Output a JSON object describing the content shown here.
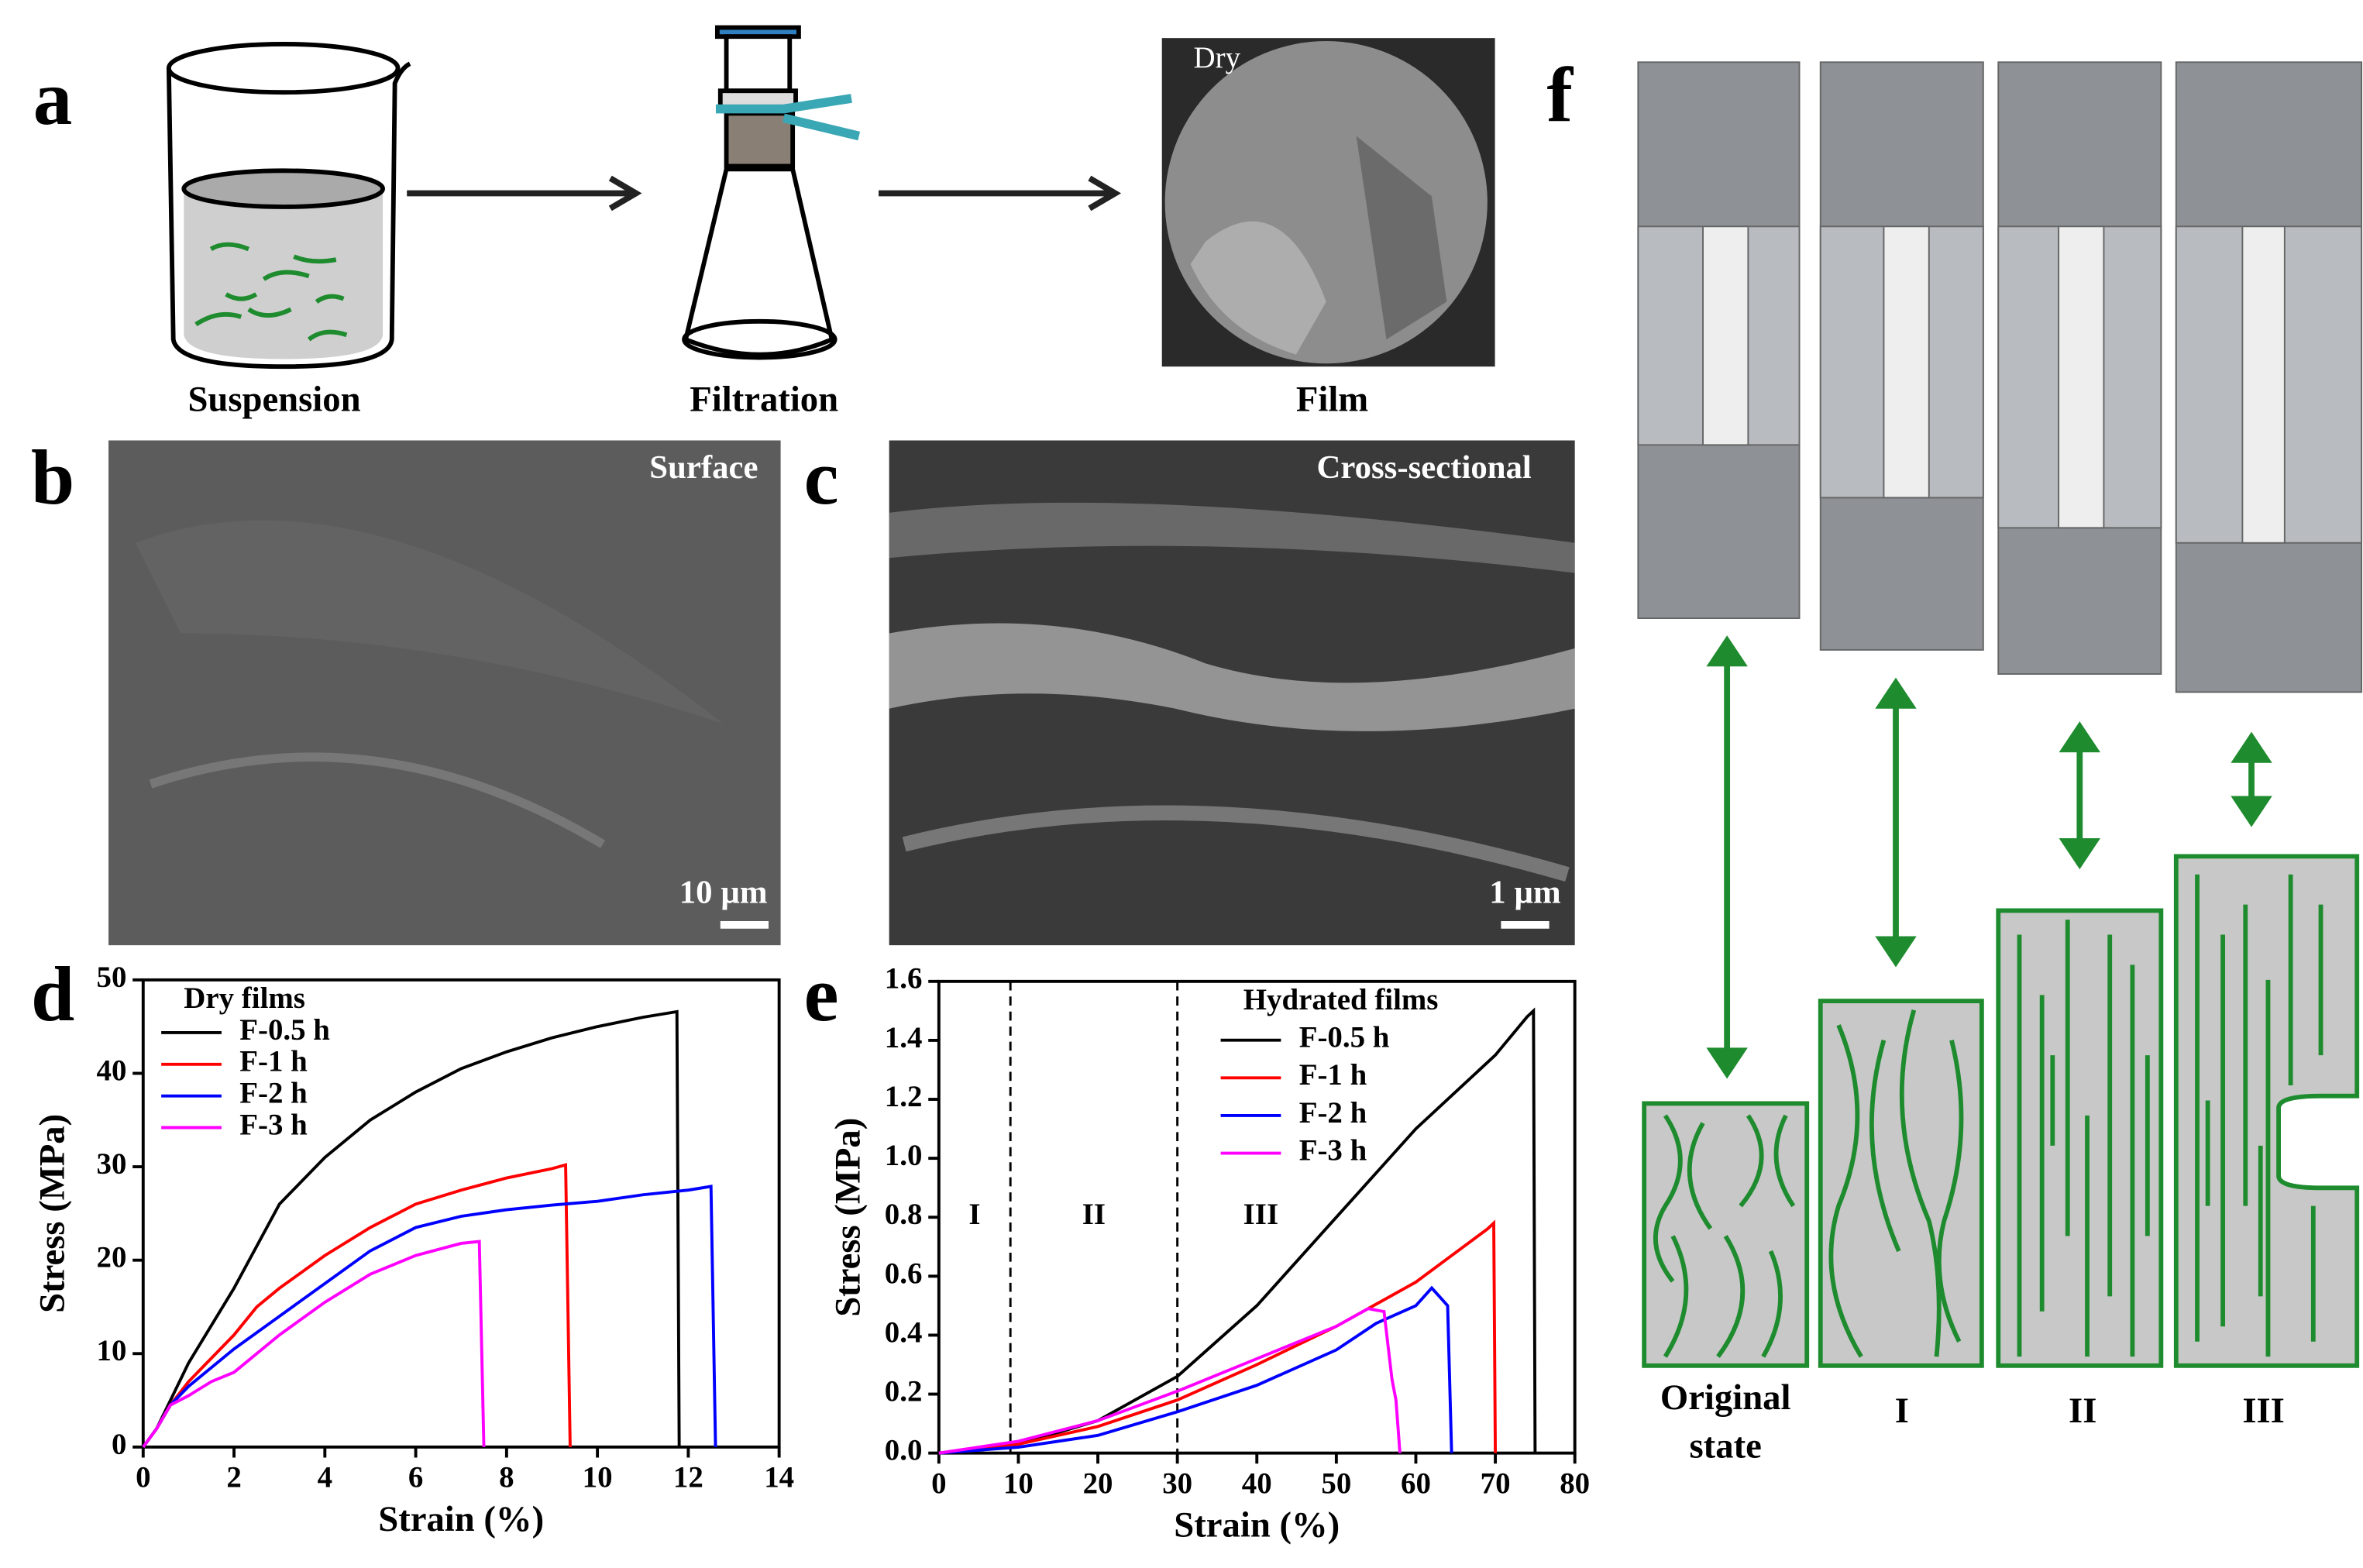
{
  "panel_labels": [
    "a",
    "b",
    "c",
    "d",
    "e",
    "f"
  ],
  "schematic": {
    "steps": [
      "Suspension",
      "Filtration",
      "Film"
    ],
    "film_label": "Dry"
  },
  "micrographs": [
    {
      "title": "Surface",
      "scale_bar": "10 µm"
    },
    {
      "title": "Cross-sectional",
      "scale_bar": "1 µm"
    }
  ],
  "stretching": {
    "states": [
      "Original state",
      "I",
      "II",
      "III"
    ]
  },
  "chart_data": [
    {
      "type": "line",
      "x_label": "Strain (%)",
      "y_label": "Stress (MPa)",
      "legend_title": "Dry films",
      "legend": "upper left",
      "xlim": [
        0,
        14
      ],
      "ylim": [
        0,
        50
      ],
      "xticks": [
        0,
        2,
        4,
        6,
        8,
        10,
        12,
        14
      ],
      "yticks": [
        0,
        10,
        20,
        30,
        40,
        50
      ],
      "series": [
        {
          "name": "F-0.5 h",
          "color": "#000000",
          "x": [
            0,
            0.3,
            0.6,
            1,
            2,
            3,
            4,
            5,
            6,
            7,
            8,
            9,
            10,
            11,
            11.75,
            11.8
          ],
          "values": [
            0,
            2,
            5,
            9,
            17,
            26,
            31,
            35,
            38,
            40.5,
            42.3,
            43.8,
            45,
            46,
            46.6,
            0
          ]
        },
        {
          "name": "F-1 h",
          "color": "#ff0000",
          "x": [
            0,
            0.3,
            0.6,
            1,
            2,
            2.5,
            3,
            4,
            5,
            6,
            7,
            8,
            9,
            9.3,
            9.4
          ],
          "values": [
            0,
            2,
            4.5,
            7,
            12,
            15,
            17,
            20.5,
            23.5,
            26,
            27.5,
            28.8,
            29.8,
            30.2,
            0
          ]
        },
        {
          "name": "F-2 h",
          "color": "#0000ff",
          "x": [
            0,
            0.3,
            0.6,
            1,
            2,
            3,
            4,
            5,
            6,
            7,
            8,
            9,
            10,
            11,
            12,
            12.5,
            12.6
          ],
          "values": [
            0,
            2,
            4.5,
            6.5,
            10.5,
            14,
            17.5,
            21,
            23.5,
            24.7,
            25.4,
            25.9,
            26.3,
            27,
            27.5,
            27.9,
            0
          ]
        },
        {
          "name": "F-3 h",
          "color": "#ff00ff",
          "x": [
            0,
            0.3,
            0.6,
            1,
            1.5,
            2,
            3,
            4,
            5,
            6,
            7,
            7.4,
            7.5
          ],
          "values": [
            0,
            2,
            4.5,
            5.5,
            7,
            8,
            12,
            15.5,
            18.5,
            20.5,
            21.8,
            22,
            0
          ]
        }
      ]
    },
    {
      "type": "line",
      "x_label": "Strain (%)",
      "y_label": "Stress (MPa)",
      "legend_title": "Hydrated films",
      "legend": "upper center",
      "xlim": [
        0,
        80
      ],
      "ylim": [
        0,
        1.6
      ],
      "xticks": [
        0,
        10,
        20,
        30,
        40,
        50,
        60,
        70,
        80
      ],
      "yticks": [
        {
          "value": 0,
          "label": "0.0"
        },
        0.2,
        0.4,
        0.6,
        0.8,
        {
          "value": 1,
          "label": "1.0"
        },
        1.2,
        1.4,
        1.6
      ],
      "region_bounds": [
        9,
        30
      ],
      "region_labels": [
        "I",
        "II",
        "III"
      ],
      "series": [
        {
          "name": "F-0.5 h",
          "color": "#000000",
          "x": [
            0,
            10,
            20,
            30,
            40,
            50,
            60,
            70,
            74,
            74.8,
            75
          ],
          "values": [
            0,
            0.03,
            0.11,
            0.26,
            0.5,
            0.8,
            1.1,
            1.35,
            1.48,
            1.5,
            0
          ]
        },
        {
          "name": "F-1 h",
          "color": "#ff0000",
          "x": [
            0,
            10,
            20,
            30,
            40,
            50,
            60,
            69,
            69.8,
            70
          ],
          "values": [
            0,
            0.03,
            0.09,
            0.18,
            0.3,
            0.43,
            0.58,
            0.76,
            0.78,
            0
          ]
        },
        {
          "name": "F-2 h",
          "color": "#0000ff",
          "x": [
            0,
            10,
            20,
            30,
            40,
            50,
            55,
            60,
            62,
            63,
            64,
            64.5
          ],
          "values": [
            0,
            0.02,
            0.06,
            0.14,
            0.23,
            0.35,
            0.44,
            0.5,
            0.56,
            0.53,
            0.5,
            0
          ]
        },
        {
          "name": "F-3 h",
          "color": "#ff00ff",
          "x": [
            0,
            10,
            20,
            30,
            40,
            50,
            54,
            56,
            57,
            57.5,
            58
          ],
          "values": [
            0,
            0.04,
            0.11,
            0.21,
            0.32,
            0.43,
            0.49,
            0.48,
            0.25,
            0.18,
            0
          ]
        }
      ]
    }
  ]
}
